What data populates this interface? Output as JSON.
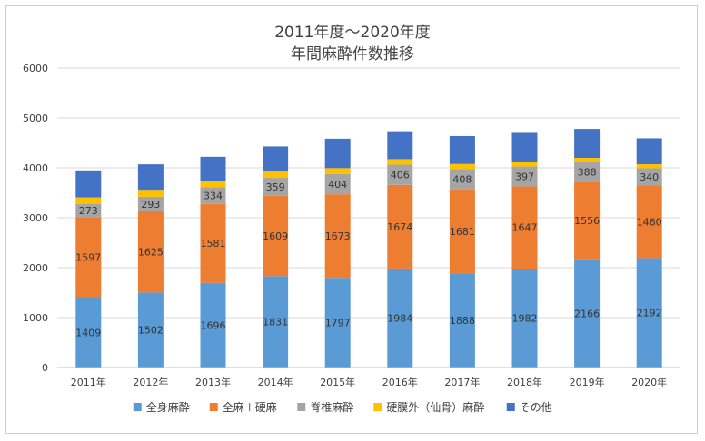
{
  "chart_data": {
    "type": "bar",
    "stacked": true,
    "title": "2011年度～2020年度",
    "subtitle": "年間麻酔件数推移",
    "xlabel": "",
    "ylabel": "",
    "ylim": [
      0,
      6000
    ],
    "yticks": [
      0,
      1000,
      2000,
      3000,
      4000,
      5000,
      6000
    ],
    "grid": true,
    "legend_position": "bottom",
    "categories": [
      "2011年",
      "2012年",
      "2013年",
      "2014年",
      "2015年",
      "2016年",
      "2017年",
      "2018年",
      "2019年",
      "2020年"
    ],
    "series": [
      {
        "name": "全身麻酔",
        "color": "#5b9bd5",
        "labeled": true,
        "values": [
          1409,
          1502,
          1696,
          1831,
          1797,
          1984,
          1888,
          1982,
          2166,
          2192
        ]
      },
      {
        "name": "全麻＋硬麻",
        "color": "#ed7d31",
        "labeled": true,
        "values": [
          1597,
          1625,
          1581,
          1609,
          1673,
          1674,
          1681,
          1647,
          1556,
          1460
        ]
      },
      {
        "name": "脊椎麻酔",
        "color": "#a5a5a5",
        "labeled": true,
        "values": [
          273,
          293,
          334,
          359,
          404,
          406,
          408,
          397,
          388,
          340
        ]
      },
      {
        "name": "硬膜外（仙骨）麻酔",
        "color": "#ffc000",
        "labeled": false,
        "values": [
          130,
          140,
          130,
          130,
          120,
          110,
          100,
          95,
          90,
          80
        ]
      },
      {
        "name": "その他",
        "color": "#4472c4",
        "labeled": false,
        "values": [
          540,
          510,
          480,
          500,
          590,
          560,
          560,
          580,
          580,
          520
        ]
      }
    ]
  }
}
